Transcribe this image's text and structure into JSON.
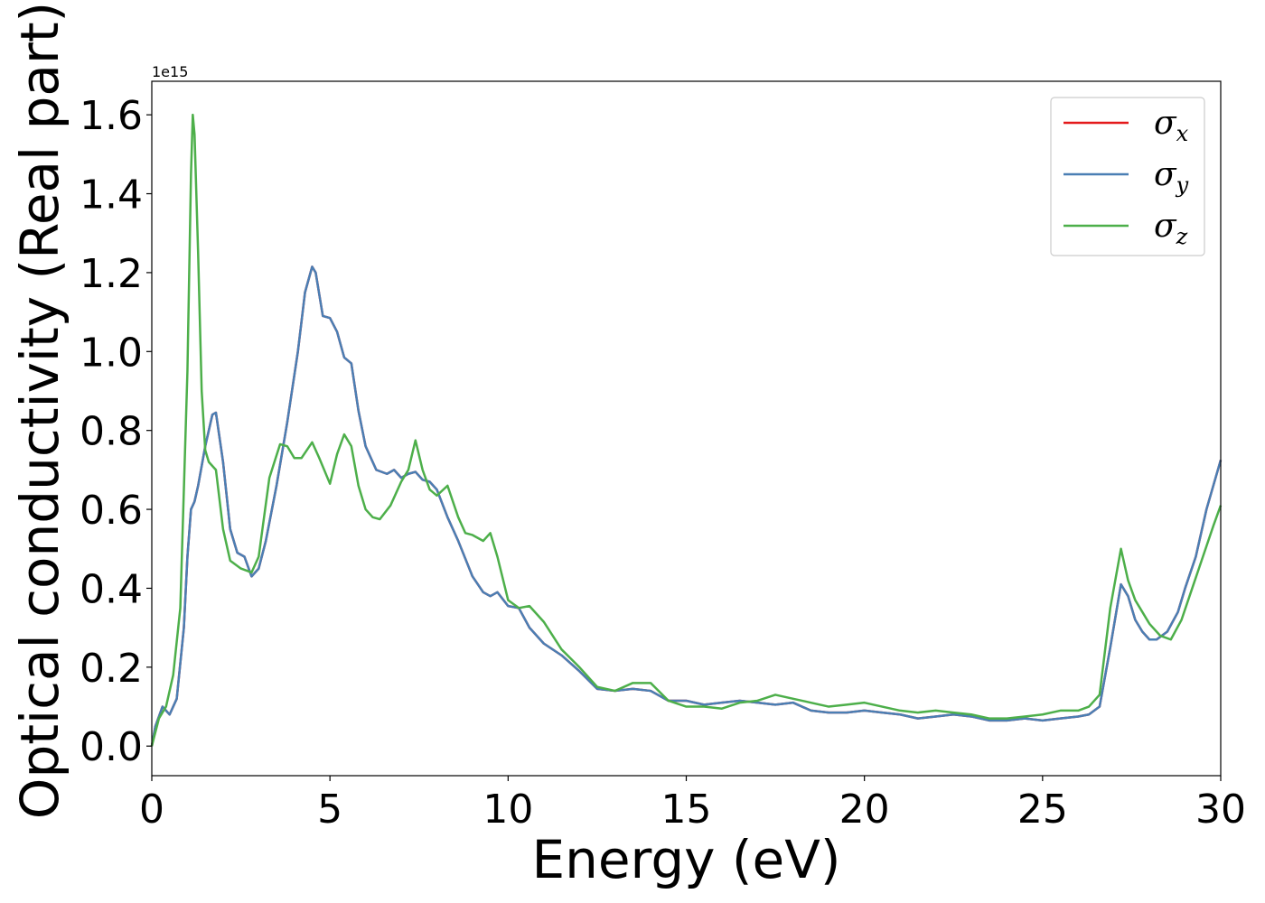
{
  "chart_data": {
    "type": "line",
    "xlabel": "Energy (eV)",
    "ylabel": "Optical conductivity (Real part)",
    "y_offset_label": "1e15",
    "xlim": [
      0,
      30
    ],
    "ylim": [
      -0.075,
      1.685
    ],
    "x_ticks": [
      0,
      5,
      10,
      15,
      20,
      25,
      30
    ],
    "y_ticks": [
      0.0,
      0.2,
      0.4,
      0.6,
      0.8,
      1.0,
      1.2,
      1.4,
      1.6
    ],
    "x_tick_labels": [
      "0",
      "5",
      "10",
      "15",
      "20",
      "25",
      "30"
    ],
    "y_tick_labels": [
      "0.0",
      "0.2",
      "0.4",
      "0.6",
      "0.8",
      "1.0",
      "1.2",
      "1.4",
      "1.6"
    ],
    "grid": false,
    "legend_position": "top-right",
    "series": [
      {
        "name": "σx",
        "legend_base": "σ",
        "legend_sub": "x",
        "color": "#e41a1c",
        "x": [
          0,
          0.1,
          0.3,
          0.5,
          0.7,
          0.9,
          1.0,
          1.1,
          1.2,
          1.3,
          1.5,
          1.7,
          1.8,
          2.0,
          2.2,
          2.4,
          2.6,
          2.8,
          3.0,
          3.2,
          3.5,
          3.8,
          4.1,
          4.3,
          4.5,
          4.6,
          4.8,
          5.0,
          5.2,
          5.4,
          5.6,
          5.8,
          6.0,
          6.3,
          6.6,
          6.8,
          7.0,
          7.2,
          7.4,
          7.6,
          7.8,
          8.0,
          8.3,
          8.6,
          9.0,
          9.3,
          9.5,
          9.7,
          10.0,
          10.3,
          10.6,
          11.0,
          11.5,
          12.0,
          12.5,
          13.0,
          13.5,
          14.0,
          14.5,
          15.0,
          15.5,
          16.0,
          16.5,
          17.0,
          17.5,
          18.0,
          18.5,
          19.0,
          19.5,
          20.0,
          20.5,
          21.0,
          21.5,
          22.0,
          22.5,
          23.0,
          23.5,
          24.0,
          24.5,
          25.0,
          25.5,
          26.0,
          26.3,
          26.6,
          26.9,
          27.2,
          27.4,
          27.6,
          27.8,
          28.0,
          28.2,
          28.5,
          28.8,
          29.0,
          29.3,
          29.6,
          30.0
        ],
        "values": [
          0.0,
          0.05,
          0.1,
          0.08,
          0.12,
          0.3,
          0.48,
          0.6,
          0.62,
          0.66,
          0.76,
          0.84,
          0.845,
          0.72,
          0.55,
          0.49,
          0.48,
          0.43,
          0.45,
          0.52,
          0.66,
          0.82,
          1.0,
          1.15,
          1.215,
          1.2,
          1.09,
          1.085,
          1.05,
          0.985,
          0.97,
          0.85,
          0.76,
          0.7,
          0.69,
          0.7,
          0.68,
          0.69,
          0.695,
          0.675,
          0.67,
          0.65,
          0.58,
          0.52,
          0.43,
          0.39,
          0.38,
          0.39,
          0.355,
          0.35,
          0.3,
          0.26,
          0.23,
          0.19,
          0.145,
          0.14,
          0.145,
          0.14,
          0.115,
          0.115,
          0.105,
          0.11,
          0.115,
          0.11,
          0.105,
          0.11,
          0.09,
          0.085,
          0.085,
          0.09,
          0.085,
          0.08,
          0.07,
          0.075,
          0.08,
          0.075,
          0.065,
          0.065,
          0.07,
          0.065,
          0.07,
          0.075,
          0.08,
          0.1,
          0.25,
          0.41,
          0.38,
          0.32,
          0.29,
          0.27,
          0.27,
          0.29,
          0.34,
          0.4,
          0.48,
          0.6,
          0.725
        ]
      },
      {
        "name": "σy",
        "legend_base": "σ",
        "legend_sub": "y",
        "color": "#4a7fb4",
        "x": [
          0,
          0.1,
          0.3,
          0.5,
          0.7,
          0.9,
          1.0,
          1.1,
          1.2,
          1.3,
          1.5,
          1.7,
          1.8,
          2.0,
          2.2,
          2.4,
          2.6,
          2.8,
          3.0,
          3.2,
          3.5,
          3.8,
          4.1,
          4.3,
          4.5,
          4.6,
          4.8,
          5.0,
          5.2,
          5.4,
          5.6,
          5.8,
          6.0,
          6.3,
          6.6,
          6.8,
          7.0,
          7.2,
          7.4,
          7.6,
          7.8,
          8.0,
          8.3,
          8.6,
          9.0,
          9.3,
          9.5,
          9.7,
          10.0,
          10.3,
          10.6,
          11.0,
          11.5,
          12.0,
          12.5,
          13.0,
          13.5,
          14.0,
          14.5,
          15.0,
          15.5,
          16.0,
          16.5,
          17.0,
          17.5,
          18.0,
          18.5,
          19.0,
          19.5,
          20.0,
          20.5,
          21.0,
          21.5,
          22.0,
          22.5,
          23.0,
          23.5,
          24.0,
          24.5,
          25.0,
          25.5,
          26.0,
          26.3,
          26.6,
          26.9,
          27.2,
          27.4,
          27.6,
          27.8,
          28.0,
          28.2,
          28.5,
          28.8,
          29.0,
          29.3,
          29.6,
          30.0
        ],
        "values": [
          0.0,
          0.05,
          0.1,
          0.08,
          0.12,
          0.3,
          0.48,
          0.6,
          0.62,
          0.66,
          0.76,
          0.84,
          0.845,
          0.72,
          0.55,
          0.49,
          0.48,
          0.43,
          0.45,
          0.52,
          0.66,
          0.82,
          1.0,
          1.15,
          1.215,
          1.2,
          1.09,
          1.085,
          1.05,
          0.985,
          0.97,
          0.85,
          0.76,
          0.7,
          0.69,
          0.7,
          0.68,
          0.69,
          0.695,
          0.675,
          0.67,
          0.65,
          0.58,
          0.52,
          0.43,
          0.39,
          0.38,
          0.39,
          0.355,
          0.35,
          0.3,
          0.26,
          0.23,
          0.19,
          0.145,
          0.14,
          0.145,
          0.14,
          0.115,
          0.115,
          0.105,
          0.11,
          0.115,
          0.11,
          0.105,
          0.11,
          0.09,
          0.085,
          0.085,
          0.09,
          0.085,
          0.08,
          0.07,
          0.075,
          0.08,
          0.075,
          0.065,
          0.065,
          0.07,
          0.065,
          0.07,
          0.075,
          0.08,
          0.1,
          0.25,
          0.41,
          0.38,
          0.32,
          0.29,
          0.27,
          0.27,
          0.29,
          0.34,
          0.4,
          0.48,
          0.6,
          0.725
        ]
      },
      {
        "name": "σz",
        "legend_base": "σ",
        "legend_sub": "z",
        "color": "#4daf4a",
        "x": [
          0,
          0.2,
          0.4,
          0.6,
          0.8,
          1.0,
          1.1,
          1.15,
          1.2,
          1.3,
          1.4,
          1.5,
          1.6,
          1.8,
          2.0,
          2.2,
          2.5,
          2.8,
          3.0,
          3.3,
          3.6,
          3.8,
          4.0,
          4.2,
          4.5,
          4.7,
          5.0,
          5.2,
          5.4,
          5.6,
          5.8,
          6.0,
          6.2,
          6.4,
          6.7,
          7.0,
          7.2,
          7.4,
          7.6,
          7.8,
          8.0,
          8.3,
          8.6,
          8.8,
          9.0,
          9.3,
          9.5,
          9.7,
          10.0,
          10.3,
          10.6,
          11.0,
          11.5,
          12.0,
          12.5,
          13.0,
          13.5,
          14.0,
          14.5,
          15.0,
          15.5,
          16.0,
          16.5,
          17.0,
          17.5,
          18.0,
          18.5,
          19.0,
          19.5,
          20.0,
          20.5,
          21.0,
          21.5,
          22.0,
          22.5,
          23.0,
          23.5,
          24.0,
          24.5,
          25.0,
          25.5,
          26.0,
          26.3,
          26.6,
          26.9,
          27.2,
          27.4,
          27.6,
          27.8,
          28.0,
          28.3,
          28.6,
          28.9,
          29.2,
          29.5,
          29.8,
          30.0
        ],
        "values": [
          0.0,
          0.07,
          0.1,
          0.18,
          0.35,
          0.95,
          1.45,
          1.6,
          1.55,
          1.25,
          0.9,
          0.75,
          0.72,
          0.7,
          0.55,
          0.47,
          0.45,
          0.44,
          0.48,
          0.68,
          0.765,
          0.76,
          0.73,
          0.73,
          0.77,
          0.73,
          0.665,
          0.74,
          0.79,
          0.76,
          0.66,
          0.6,
          0.58,
          0.575,
          0.61,
          0.67,
          0.7,
          0.775,
          0.7,
          0.65,
          0.635,
          0.66,
          0.58,
          0.54,
          0.535,
          0.52,
          0.54,
          0.48,
          0.37,
          0.35,
          0.355,
          0.315,
          0.245,
          0.2,
          0.15,
          0.14,
          0.16,
          0.16,
          0.115,
          0.1,
          0.1,
          0.095,
          0.11,
          0.115,
          0.13,
          0.12,
          0.11,
          0.1,
          0.105,
          0.11,
          0.1,
          0.09,
          0.085,
          0.09,
          0.085,
          0.08,
          0.07,
          0.07,
          0.075,
          0.08,
          0.09,
          0.09,
          0.1,
          0.13,
          0.35,
          0.5,
          0.42,
          0.37,
          0.34,
          0.31,
          0.28,
          0.27,
          0.32,
          0.4,
          0.48,
          0.56,
          0.61
        ]
      }
    ]
  }
}
